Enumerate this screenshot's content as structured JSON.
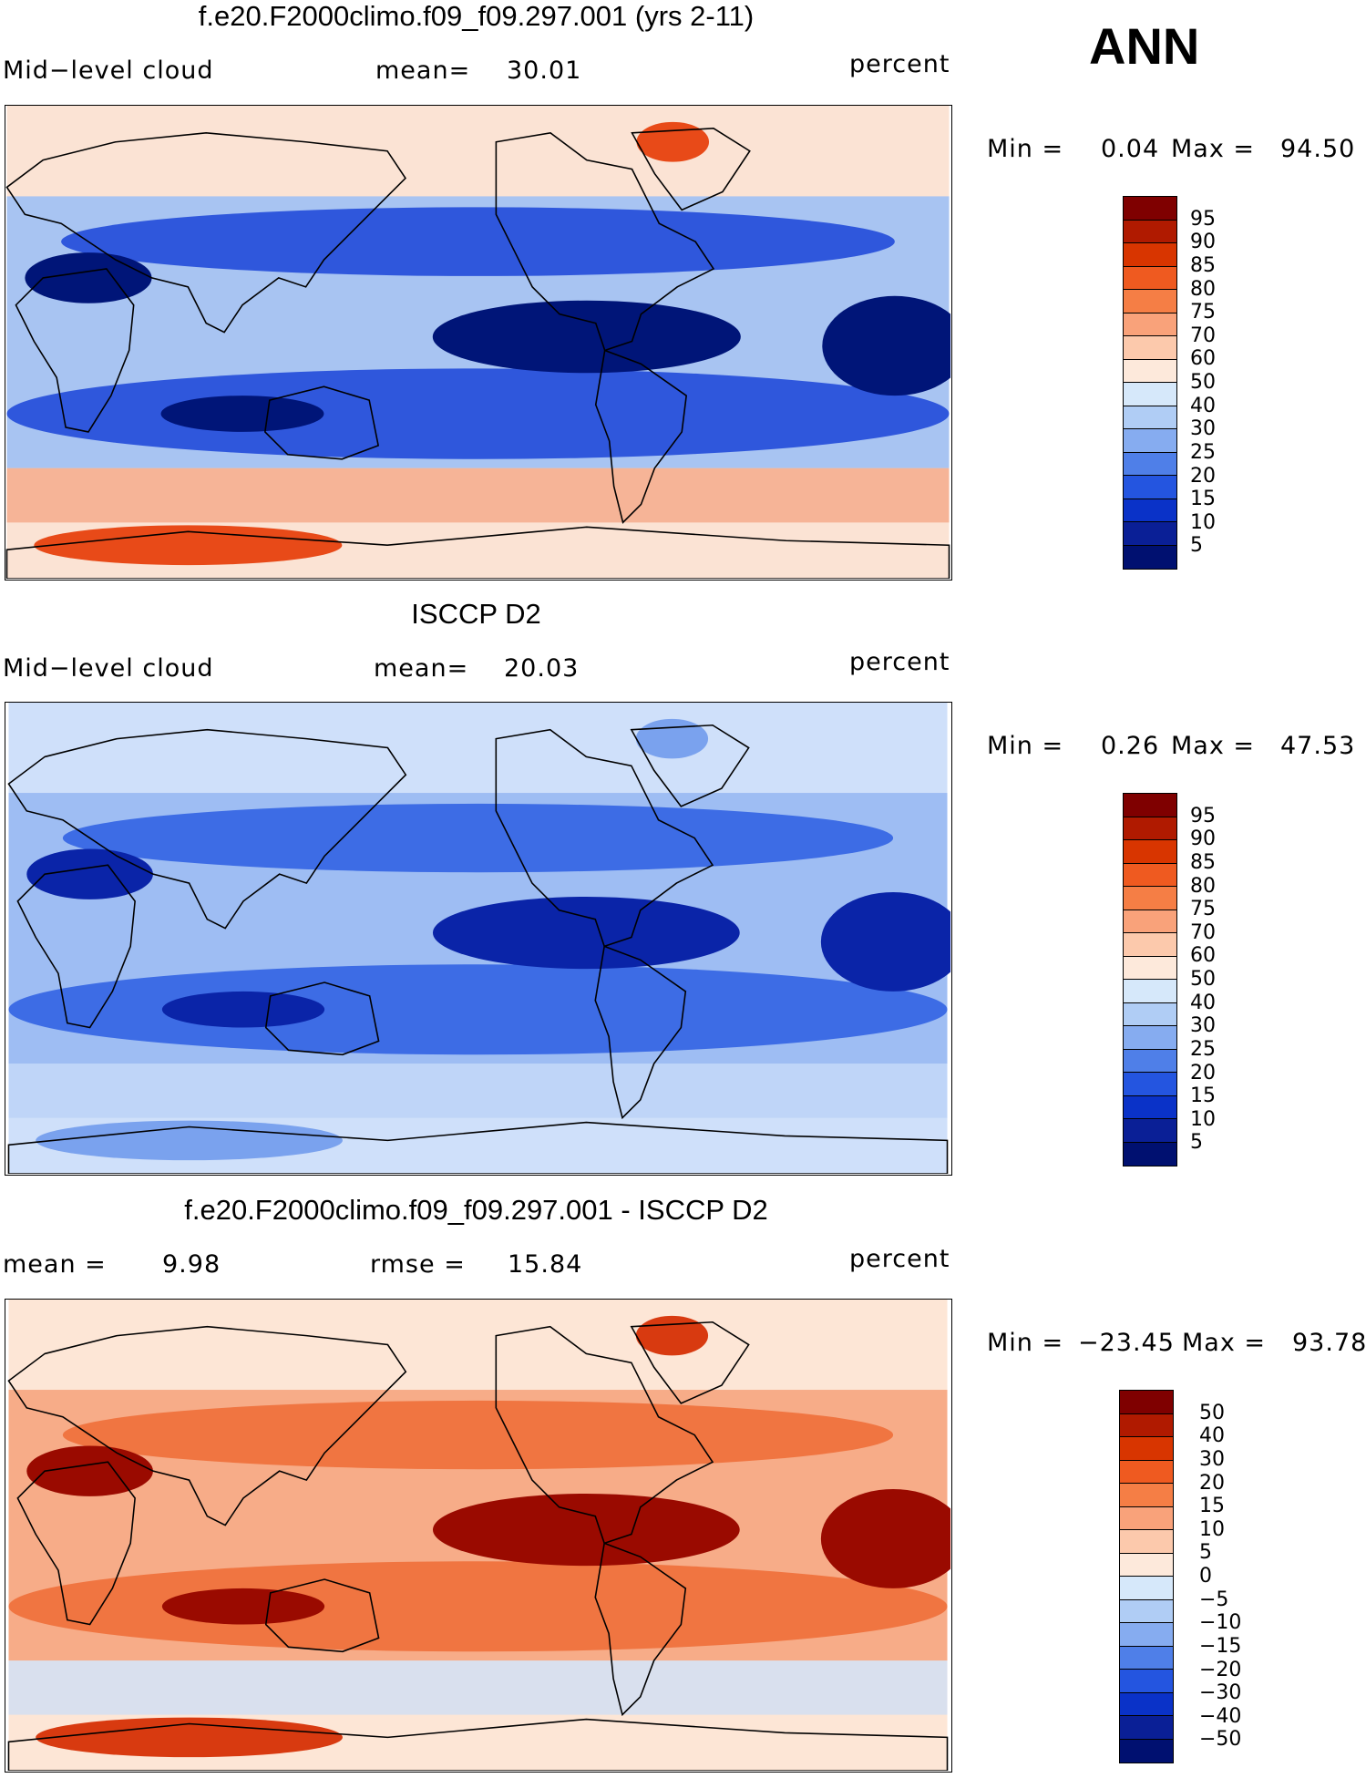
{
  "season": "ANN",
  "panels": [
    {
      "title": "f.e20.F2000climo.f09_f09.297.001 (yrs 2-11)",
      "left": "Mid−level cloud",
      "center_label": "mean=",
      "center_value": "30.01",
      "units": "percent",
      "stats_min_label": "Min =",
      "stats_min": "0.04",
      "stats_max_label": "Max =",
      "stats_max": "94.50",
      "colorbar_ticks": [
        "95",
        "90",
        "85",
        "80",
        "75",
        "70",
        "60",
        "50",
        "40",
        "30",
        "25",
        "20",
        "15",
        "10",
        "5"
      ]
    },
    {
      "title": "ISCCP D2",
      "left": "Mid−level cloud",
      "center_label": "mean=",
      "center_value": "20.03",
      "units": "percent",
      "stats_min_label": "Min =",
      "stats_min": "0.26",
      "stats_max_label": "Max =",
      "stats_max": "47.53",
      "colorbar_ticks": [
        "95",
        "90",
        "85",
        "80",
        "75",
        "70",
        "60",
        "50",
        "40",
        "30",
        "25",
        "20",
        "15",
        "10",
        "5"
      ]
    },
    {
      "title": "f.e20.F2000climo.f09_f09.297.001 - ISCCP D2",
      "left_label": "mean =",
      "left_value": "9.98",
      "center_label": "rmse =",
      "center_value": "15.84",
      "units": "percent",
      "stats_min_label": "Min =",
      "stats_min": "−23.45",
      "stats_max_label": "Max =",
      "stats_max": "93.78",
      "colorbar_ticks": [
        "50",
        "40",
        "30",
        "20",
        "15",
        "10",
        "5",
        "0",
        "−5",
        "−10",
        "−15",
        "−20",
        "−30",
        "−40",
        "−50"
      ]
    }
  ],
  "colorbar_colors": [
    "#7f0000",
    "#b01a00",
    "#d83500",
    "#ef5a20",
    "#f57e45",
    "#f9a27a",
    "#fcc9ac",
    "#fde9db",
    "#d6e8fa",
    "#b0cdf5",
    "#86acf0",
    "#4f7fe8",
    "#2455e0",
    "#0a32c8",
    "#0a1f96",
    "#001070"
  ],
  "map_palettes": {
    "model": {
      "base": "#fbe3d4",
      "mid": "#a8c4f2",
      "deep": "#1a44d8",
      "deepest": "#001578",
      "hot": "#e84a18",
      "warm": "#f4a07e"
    },
    "obs": {
      "base": "#cfe0fa",
      "mid": "#9ebdf3",
      "deep": "#2b5ee2",
      "deepest": "#0a24a8",
      "hot": "#7aa2ee",
      "warm": "#b8d0f6"
    },
    "diff": {
      "base": "#fde6d6",
      "mid": "#f7ac88",
      "deep": "#ef6b35",
      "deepest": "#9a0a00",
      "hot": "#d83a10",
      "warm": "#c9ddf8"
    }
  }
}
